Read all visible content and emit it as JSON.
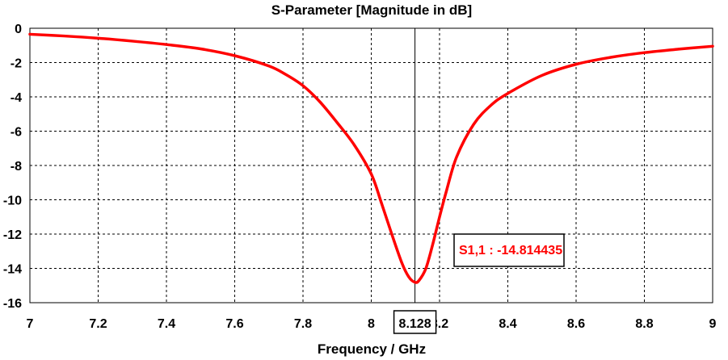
{
  "chart_data": {
    "type": "line",
    "title": "S-Parameter [Magnitude in dB]",
    "xlabel": "Frequency / GHz",
    "ylabel": "",
    "xlim": [
      7,
      9
    ],
    "ylim": [
      -16,
      0
    ],
    "xticks": [
      "7",
      "7.2",
      "7.4",
      "7.6",
      "7.8",
      "8",
      "8.2",
      "8.4",
      "8.6",
      "8.8",
      "9"
    ],
    "yticks": [
      "0",
      "-2",
      "-4",
      "-6",
      "-8",
      "-10",
      "-12",
      "-14",
      "-16"
    ],
    "grid": true,
    "series": [
      {
        "name": "S1,1",
        "color": "#ff0000",
        "x": [
          7.0,
          7.1,
          7.2,
          7.3,
          7.4,
          7.5,
          7.6,
          7.7,
          7.75,
          7.8,
          7.85,
          7.9,
          7.95,
          8.0,
          8.03,
          8.06,
          8.09,
          8.11,
          8.128,
          8.14,
          8.16,
          8.18,
          8.2,
          8.22,
          8.25,
          8.3,
          8.35,
          8.4,
          8.5,
          8.6,
          8.7,
          8.8,
          8.9,
          9.0
        ],
        "y": [
          -0.35,
          -0.45,
          -0.58,
          -0.75,
          -0.95,
          -1.2,
          -1.6,
          -2.2,
          -2.7,
          -3.35,
          -4.3,
          -5.5,
          -6.8,
          -8.5,
          -10.2,
          -12.0,
          -13.7,
          -14.5,
          -14.81,
          -14.7,
          -14.0,
          -12.6,
          -11.0,
          -9.5,
          -7.5,
          -5.6,
          -4.5,
          -3.8,
          -2.75,
          -2.1,
          -1.7,
          -1.42,
          -1.22,
          -1.05
        ]
      }
    ],
    "marker": {
      "x": 8.128,
      "x_label": "8.128",
      "annotation": "S1,1 : -14.814435",
      "annotation_color": "#ff0000"
    }
  }
}
